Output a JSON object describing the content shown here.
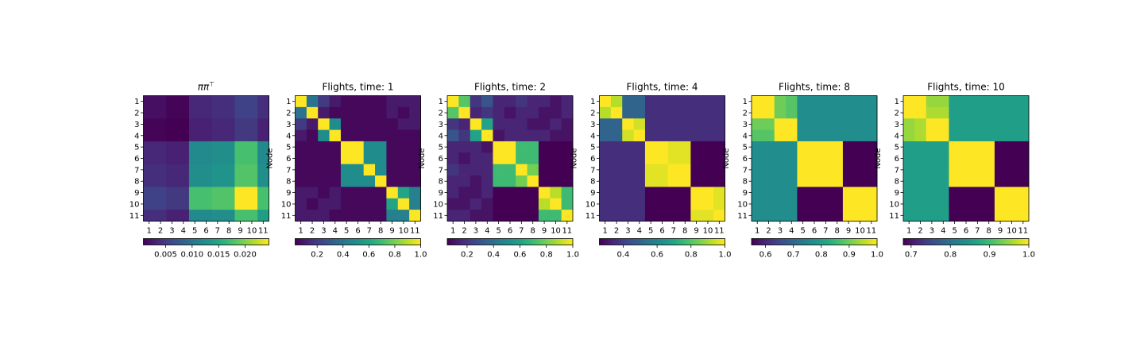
{
  "figure": {
    "colormap": "viridis",
    "node_labels": [
      "1",
      "2",
      "3",
      "4",
      "5",
      "6",
      "7",
      "8",
      "9",
      "10",
      "11"
    ],
    "ylabel": "Node"
  },
  "chart_data": [
    {
      "type": "heatmap",
      "title": "ππ⊤",
      "title_parts": [
        "ππ",
        "⊤"
      ],
      "ylabel": "",
      "vmin": 0.0008,
      "vmax": 0.0245,
      "colorbar_ticks": [
        {
          "value": 0.005,
          "label": "0.005"
        },
        {
          "value": 0.01,
          "label": "0.010"
        },
        {
          "value": 0.015,
          "label": "0.015"
        },
        {
          "value": 0.02,
          "label": "0.020"
        }
      ],
      "values": [
        [
          0.0018,
          0.0018,
          0.001,
          0.001,
          0.0035,
          0.0035,
          0.004,
          0.004,
          0.0055,
          0.0055,
          0.004
        ],
        [
          0.0018,
          0.0018,
          0.001,
          0.001,
          0.0035,
          0.0035,
          0.004,
          0.004,
          0.0055,
          0.0055,
          0.004
        ],
        [
          0.001,
          0.001,
          0.0008,
          0.0008,
          0.003,
          0.003,
          0.0035,
          0.0035,
          0.0048,
          0.0048,
          0.003
        ],
        [
          0.001,
          0.001,
          0.0008,
          0.0008,
          0.003,
          0.003,
          0.0035,
          0.0035,
          0.0048,
          0.0048,
          0.003
        ],
        [
          0.0035,
          0.0035,
          0.003,
          0.003,
          0.012,
          0.012,
          0.0125,
          0.0125,
          0.0175,
          0.0175,
          0.012
        ],
        [
          0.0035,
          0.0035,
          0.003,
          0.003,
          0.012,
          0.012,
          0.0125,
          0.0125,
          0.0175,
          0.0175,
          0.012
        ],
        [
          0.004,
          0.004,
          0.0035,
          0.0035,
          0.0125,
          0.0125,
          0.013,
          0.013,
          0.018,
          0.018,
          0.0125
        ],
        [
          0.004,
          0.004,
          0.0035,
          0.0035,
          0.0125,
          0.0125,
          0.013,
          0.013,
          0.018,
          0.018,
          0.0125
        ],
        [
          0.0055,
          0.0055,
          0.0048,
          0.0048,
          0.0175,
          0.0175,
          0.018,
          0.018,
          0.0245,
          0.0245,
          0.0175
        ],
        [
          0.0055,
          0.0055,
          0.0048,
          0.0048,
          0.0175,
          0.0175,
          0.018,
          0.018,
          0.0245,
          0.0245,
          0.0175
        ],
        [
          0.004,
          0.004,
          0.003,
          0.003,
          0.012,
          0.012,
          0.0125,
          0.0125,
          0.0175,
          0.0175,
          0.014
        ]
      ]
    },
    {
      "type": "heatmap",
      "title": "Flights, time: 1",
      "ylabel": "Node",
      "vmin": 0.03,
      "vmax": 1.0,
      "colorbar_ticks": [
        {
          "value": 0.2,
          "label": "0.2"
        },
        {
          "value": 0.4,
          "label": "0.4"
        },
        {
          "value": 0.6,
          "label": "0.6"
        },
        {
          "value": 0.8,
          "label": "0.8"
        },
        {
          "value": 1.0,
          "label": "1.0"
        }
      ],
      "values": [
        [
          1.0,
          0.4,
          0.2,
          0.1,
          0.05,
          0.05,
          0.05,
          0.05,
          0.1,
          0.1,
          0.1
        ],
        [
          0.4,
          1.0,
          0.1,
          0.05,
          0.05,
          0.05,
          0.05,
          0.05,
          0.1,
          0.05,
          0.1
        ],
        [
          0.2,
          0.1,
          1.0,
          0.5,
          0.05,
          0.05,
          0.05,
          0.05,
          0.05,
          0.1,
          0.1
        ],
        [
          0.1,
          0.05,
          0.5,
          1.0,
          0.05,
          0.05,
          0.05,
          0.05,
          0.05,
          0.05,
          0.05
        ],
        [
          0.05,
          0.05,
          0.05,
          0.05,
          1.0,
          1.0,
          0.5,
          0.5,
          0.05,
          0.05,
          0.05
        ],
        [
          0.05,
          0.05,
          0.05,
          0.05,
          1.0,
          1.0,
          0.5,
          0.5,
          0.05,
          0.05,
          0.05
        ],
        [
          0.05,
          0.05,
          0.05,
          0.05,
          0.5,
          0.5,
          1.0,
          0.5,
          0.05,
          0.05,
          0.05
        ],
        [
          0.05,
          0.05,
          0.05,
          0.05,
          0.5,
          0.5,
          0.5,
          1.0,
          0.05,
          0.05,
          0.05
        ],
        [
          0.1,
          0.1,
          0.05,
          0.1,
          0.05,
          0.05,
          0.05,
          0.05,
          1.0,
          0.6,
          0.45
        ],
        [
          0.1,
          0.05,
          0.1,
          0.1,
          0.05,
          0.05,
          0.05,
          0.05,
          0.6,
          1.0,
          0.45
        ],
        [
          0.1,
          0.1,
          0.1,
          0.05,
          0.05,
          0.05,
          0.05,
          0.05,
          0.45,
          0.45,
          1.0
        ]
      ]
    },
    {
      "type": "heatmap",
      "title": "Flights, time: 2",
      "ylabel": "Node",
      "vmin": 0.05,
      "vmax": 1.0,
      "colorbar_ticks": [
        {
          "value": 0.2,
          "label": "0.2"
        },
        {
          "value": 0.4,
          "label": "0.4"
        },
        {
          "value": 0.6,
          "label": "0.6"
        },
        {
          "value": 0.8,
          "label": "0.8"
        },
        {
          "value": 1.0,
          "label": "1.0"
        }
      ],
      "values": [
        [
          1.0,
          0.75,
          0.2,
          0.3,
          0.15,
          0.15,
          0.2,
          0.15,
          0.15,
          0.1,
          0.15
        ],
        [
          0.75,
          1.0,
          0.15,
          0.2,
          0.15,
          0.1,
          0.15,
          0.15,
          0.1,
          0.1,
          0.15
        ],
        [
          0.2,
          0.15,
          1.0,
          0.6,
          0.15,
          0.15,
          0.15,
          0.1,
          0.1,
          0.15,
          0.1
        ],
        [
          0.3,
          0.2,
          0.6,
          1.0,
          0.1,
          0.15,
          0.15,
          0.15,
          0.15,
          0.1,
          0.1
        ],
        [
          0.15,
          0.15,
          0.15,
          0.1,
          1.0,
          1.0,
          0.7,
          0.7,
          0.05,
          0.05,
          0.05
        ],
        [
          0.15,
          0.1,
          0.15,
          0.15,
          1.0,
          1.0,
          0.7,
          0.7,
          0.05,
          0.05,
          0.05
        ],
        [
          0.2,
          0.15,
          0.15,
          0.15,
          0.7,
          0.7,
          1.0,
          0.8,
          0.05,
          0.05,
          0.05
        ],
        [
          0.15,
          0.15,
          0.1,
          0.15,
          0.7,
          0.7,
          0.8,
          1.0,
          0.05,
          0.05,
          0.05
        ],
        [
          0.15,
          0.1,
          0.1,
          0.15,
          0.05,
          0.05,
          0.05,
          0.05,
          1.0,
          0.9,
          0.7
        ],
        [
          0.1,
          0.1,
          0.15,
          0.1,
          0.05,
          0.05,
          0.05,
          0.05,
          0.9,
          1.0,
          0.7
        ],
        [
          0.15,
          0.15,
          0.1,
          0.1,
          0.05,
          0.05,
          0.05,
          0.05,
          0.7,
          0.7,
          1.0
        ]
      ]
    },
    {
      "type": "heatmap",
      "title": "Flights, time: 4",
      "ylabel": "Node",
      "vmin": 0.26,
      "vmax": 1.0,
      "colorbar_ticks": [
        {
          "value": 0.4,
          "label": "0.4"
        },
        {
          "value": 0.6,
          "label": "0.6"
        },
        {
          "value": 0.8,
          "label": "0.8"
        },
        {
          "value": 1.0,
          "label": "1.0"
        }
      ],
      "values": [
        [
          1.0,
          0.92,
          0.5,
          0.5,
          0.36,
          0.36,
          0.36,
          0.36,
          0.36,
          0.36,
          0.36
        ],
        [
          0.92,
          1.0,
          0.5,
          0.5,
          0.36,
          0.36,
          0.36,
          0.36,
          0.36,
          0.36,
          0.36
        ],
        [
          0.5,
          0.5,
          1.0,
          0.95,
          0.36,
          0.36,
          0.36,
          0.36,
          0.36,
          0.36,
          0.36
        ],
        [
          0.5,
          0.5,
          0.95,
          1.0,
          0.36,
          0.36,
          0.36,
          0.36,
          0.36,
          0.36,
          0.36
        ],
        [
          0.36,
          0.36,
          0.36,
          0.36,
          1.0,
          1.0,
          0.97,
          0.97,
          0.26,
          0.26,
          0.26
        ],
        [
          0.36,
          0.36,
          0.36,
          0.36,
          1.0,
          1.0,
          0.97,
          0.97,
          0.26,
          0.26,
          0.26
        ],
        [
          0.36,
          0.36,
          0.36,
          0.36,
          0.97,
          0.97,
          1.0,
          1.0,
          0.26,
          0.26,
          0.26
        ],
        [
          0.36,
          0.36,
          0.36,
          0.36,
          0.97,
          0.97,
          1.0,
          1.0,
          0.26,
          0.26,
          0.26
        ],
        [
          0.36,
          0.36,
          0.36,
          0.36,
          0.26,
          0.26,
          0.26,
          0.26,
          1.0,
          1.0,
          0.97
        ],
        [
          0.36,
          0.36,
          0.36,
          0.36,
          0.26,
          0.26,
          0.26,
          0.26,
          1.0,
          1.0,
          0.97
        ],
        [
          0.36,
          0.36,
          0.36,
          0.36,
          0.26,
          0.26,
          0.26,
          0.26,
          0.97,
          0.97,
          1.0
        ]
      ]
    },
    {
      "type": "heatmap",
      "title": "Flights, time: 8",
      "ylabel": "Node",
      "vmin": 0.55,
      "vmax": 1.0,
      "colorbar_ticks": [
        {
          "value": 0.6,
          "label": "0.6"
        },
        {
          "value": 0.7,
          "label": "0.7"
        },
        {
          "value": 0.8,
          "label": "0.8"
        },
        {
          "value": 0.9,
          "label": "0.9"
        },
        {
          "value": 1.0,
          "label": "1.0"
        }
      ],
      "values": [
        [
          1.0,
          1.0,
          0.9,
          0.88,
          0.77,
          0.77,
          0.77,
          0.77,
          0.77,
          0.77,
          0.77
        ],
        [
          1.0,
          1.0,
          0.9,
          0.88,
          0.77,
          0.77,
          0.77,
          0.77,
          0.77,
          0.77,
          0.77
        ],
        [
          0.9,
          0.9,
          1.0,
          1.0,
          0.77,
          0.77,
          0.77,
          0.77,
          0.77,
          0.77,
          0.77
        ],
        [
          0.88,
          0.88,
          1.0,
          1.0,
          0.77,
          0.77,
          0.77,
          0.77,
          0.77,
          0.77,
          0.77
        ],
        [
          0.77,
          0.77,
          0.77,
          0.77,
          1.0,
          1.0,
          1.0,
          1.0,
          0.55,
          0.55,
          0.55
        ],
        [
          0.77,
          0.77,
          0.77,
          0.77,
          1.0,
          1.0,
          1.0,
          1.0,
          0.55,
          0.55,
          0.55
        ],
        [
          0.77,
          0.77,
          0.77,
          0.77,
          1.0,
          1.0,
          1.0,
          1.0,
          0.55,
          0.55,
          0.55
        ],
        [
          0.77,
          0.77,
          0.77,
          0.77,
          1.0,
          1.0,
          1.0,
          1.0,
          0.55,
          0.55,
          0.55
        ],
        [
          0.77,
          0.77,
          0.77,
          0.77,
          0.55,
          0.55,
          0.55,
          0.55,
          1.0,
          1.0,
          1.0
        ],
        [
          0.77,
          0.77,
          0.77,
          0.77,
          0.55,
          0.55,
          0.55,
          0.55,
          1.0,
          1.0,
          1.0
        ],
        [
          0.77,
          0.77,
          0.77,
          0.77,
          0.55,
          0.55,
          0.55,
          0.55,
          1.0,
          1.0,
          1.0
        ]
      ]
    },
    {
      "type": "heatmap",
      "title": "Flights, time: 10",
      "ylabel": "Node",
      "vmin": 0.68,
      "vmax": 1.0,
      "colorbar_ticks": [
        {
          "value": 0.7,
          "label": "0.7"
        },
        {
          "value": 0.8,
          "label": "0.8"
        },
        {
          "value": 0.9,
          "label": "0.9"
        },
        {
          "value": 1.0,
          "label": "1.0"
        }
      ],
      "values": [
        [
          1.0,
          1.0,
          0.95,
          0.95,
          0.86,
          0.86,
          0.86,
          0.86,
          0.86,
          0.86,
          0.86
        ],
        [
          1.0,
          1.0,
          0.96,
          0.96,
          0.86,
          0.86,
          0.86,
          0.86,
          0.86,
          0.86,
          0.86
        ],
        [
          0.95,
          0.96,
          1.0,
          1.0,
          0.86,
          0.86,
          0.86,
          0.86,
          0.86,
          0.86,
          0.86
        ],
        [
          0.95,
          0.96,
          1.0,
          1.0,
          0.86,
          0.86,
          0.86,
          0.86,
          0.86,
          0.86,
          0.86
        ],
        [
          0.86,
          0.86,
          0.86,
          0.86,
          1.0,
          1.0,
          1.0,
          1.0,
          0.68,
          0.68,
          0.68
        ],
        [
          0.86,
          0.86,
          0.86,
          0.86,
          1.0,
          1.0,
          1.0,
          1.0,
          0.68,
          0.68,
          0.68
        ],
        [
          0.86,
          0.86,
          0.86,
          0.86,
          1.0,
          1.0,
          1.0,
          1.0,
          0.68,
          0.68,
          0.68
        ],
        [
          0.86,
          0.86,
          0.86,
          0.86,
          1.0,
          1.0,
          1.0,
          1.0,
          0.68,
          0.68,
          0.68
        ],
        [
          0.86,
          0.86,
          0.86,
          0.86,
          0.68,
          0.68,
          0.68,
          0.68,
          1.0,
          1.0,
          1.0
        ],
        [
          0.86,
          0.86,
          0.86,
          0.86,
          0.68,
          0.68,
          0.68,
          0.68,
          1.0,
          1.0,
          1.0
        ],
        [
          0.86,
          0.86,
          0.86,
          0.86,
          0.68,
          0.68,
          0.68,
          0.68,
          1.0,
          1.0,
          1.0
        ]
      ]
    }
  ]
}
